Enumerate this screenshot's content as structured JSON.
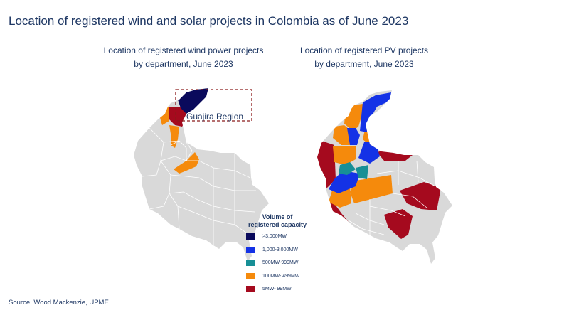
{
  "title": "Location of registered  wind and solar projects  in Colombia as of June 2023",
  "maps": {
    "wind": {
      "subtitle_line1": "Location of registered wind power  projects",
      "subtitle_line2": "by department,  June 2023",
      "region_label": "Guajira Region"
    },
    "pv": {
      "subtitle_line1": "Location of registered PV projects",
      "subtitle_line2": "by department,  June 2023"
    }
  },
  "legend": {
    "title_line1": "Volume of",
    "title_line2": "registered capacity",
    "items": [
      {
        "label": ">3,000MW",
        "color": "#0a0a5c"
      },
      {
        "label": "1,000-3,000MW",
        "color": "#1432e6"
      },
      {
        "label": "500MW-999MW",
        "color": "#178f96"
      },
      {
        "label": "100MW- 499MW",
        "color": "#f58a0c"
      },
      {
        "label": "5MW- 99MW",
        "color": "#a50a1e"
      }
    ]
  },
  "colors": {
    "no_projects": "#d9d9d9",
    "border": "#ffffff",
    "guajira_box": "#8b1a1a"
  },
  "source": "Source:  Wood Mackenzie, UPME"
}
